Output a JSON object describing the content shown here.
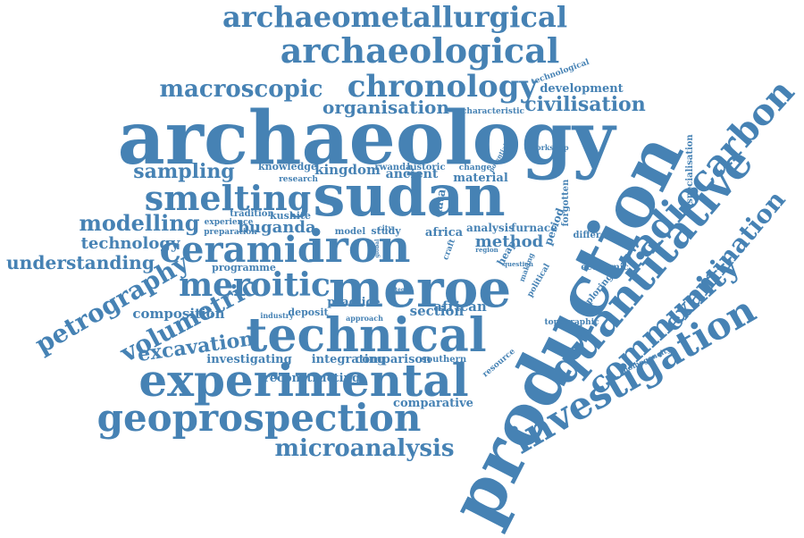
{
  "cloud": {
    "color": "#4682b4",
    "words": [
      "archaeometallurgical",
      "archaeological",
      "chronology",
      "macroscopic",
      "organisation",
      "civilisation",
      "archaeology",
      "production",
      "radiocarbon",
      "sampling",
      "kingdom",
      "smelting",
      "sudan",
      "quantitative",
      "examination",
      "modelling",
      "ceramic",
      "iron",
      "technology",
      "understanding",
      "meroitic",
      "meroe",
      "community",
      "petrography",
      "composition",
      "volumetric",
      "technical",
      "excavation",
      "investigation",
      "experimental",
      "geoprospection",
      "microanalysis",
      "investigating",
      "integrating",
      "comparison",
      "southern",
      "reconstructing",
      "comparative",
      "buganda",
      "method",
      "development",
      "technological",
      "characteristic",
      "knowledge",
      "research",
      "tradition",
      "kushite",
      "experience",
      "preparation",
      "ancient",
      "material",
      "rwanda",
      "historic",
      "change",
      "potential",
      "workshop",
      "specialisation",
      "forgotten",
      "different",
      "data",
      "model",
      "study",
      "analysis",
      "furnace",
      "period",
      "africa",
      "african",
      "section",
      "deposit",
      "practice",
      "industry",
      "approach",
      "programme",
      "economic",
      "exploring",
      "political",
      "making",
      "question",
      "region",
      "heap",
      "craft",
      "resource",
      "topographic",
      "homogeneity",
      "integral",
      "city",
      "global"
    ]
  }
}
